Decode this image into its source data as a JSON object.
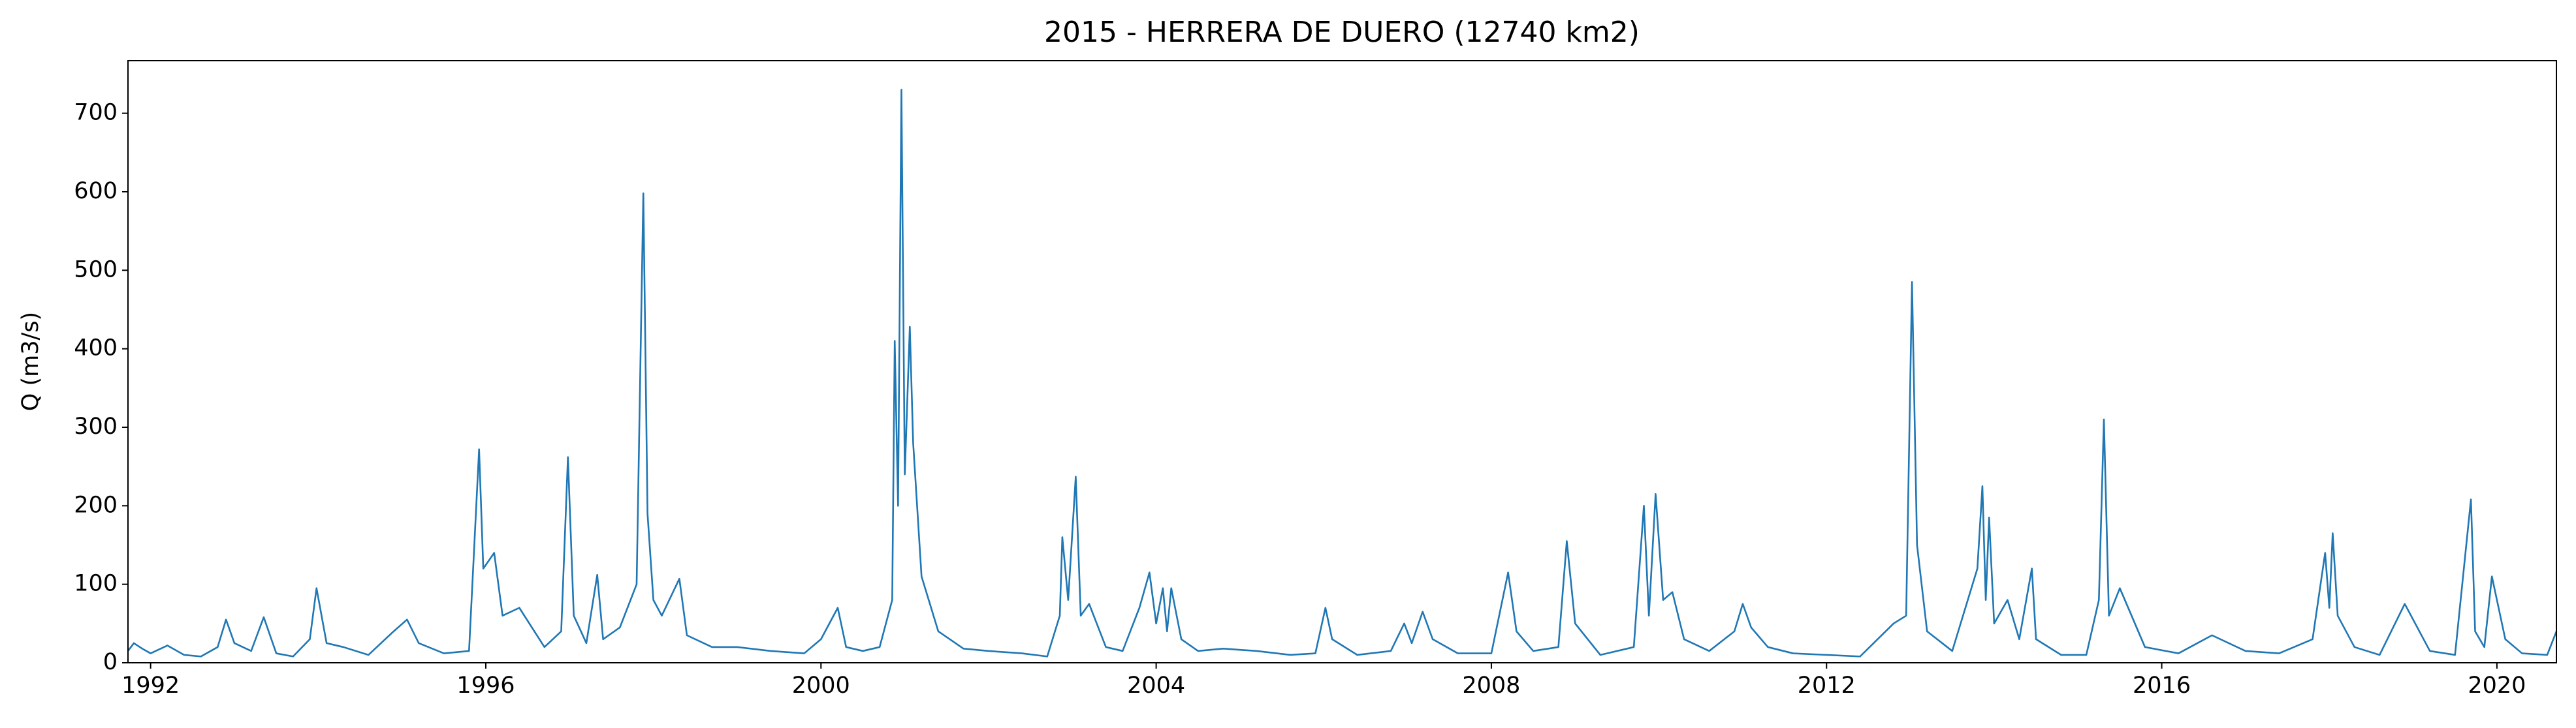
{
  "chart_data": {
    "type": "line",
    "title": "2015 - HERRERA DE DUERO (12740 km2)",
    "y_label": "Q (m3/s)",
    "color": "#1f77b4",
    "x": [
      1991.73,
      1991.8,
      1991.9,
      1992.0,
      1992.2,
      1992.4,
      1992.6,
      1992.8,
      1992.9,
      1993.0,
      1993.2,
      1993.35,
      1993.5,
      1993.7,
      1993.9,
      1993.98,
      1994.1,
      1994.3,
      1994.6,
      1994.9,
      1995.06,
      1995.2,
      1995.5,
      1995.8,
      1995.92,
      1995.97,
      1996.1,
      1996.2,
      1996.4,
      1996.7,
      1996.9,
      1996.98,
      1997.05,
      1997.2,
      1997.33,
      1997.4,
      1997.6,
      1997.8,
      1997.88,
      1997.93,
      1998.0,
      1998.1,
      1998.31,
      1998.4,
      1998.7,
      1999.0,
      1999.4,
      1999.8,
      2000.0,
      2000.2,
      2000.3,
      2000.5,
      2000.7,
      2000.85,
      2000.88,
      2000.92,
      2000.96,
      2001.0,
      2001.06,
      2001.1,
      2001.2,
      2001.4,
      2001.7,
      2002.0,
      2002.4,
      2002.7,
      2002.85,
      2002.88,
      2002.95,
      2003.04,
      2003.1,
      2003.2,
      2003.4,
      2003.6,
      2003.8,
      2003.92,
      2004.0,
      2004.08,
      2004.13,
      2004.18,
      2004.3,
      2004.5,
      2004.8,
      2005.2,
      2005.6,
      2005.9,
      2006.02,
      2006.1,
      2006.4,
      2006.8,
      2006.96,
      2007.05,
      2007.18,
      2007.3,
      2007.6,
      2008.0,
      2008.2,
      2008.3,
      2008.5,
      2008.8,
      2008.9,
      2009.0,
      2009.3,
      2009.7,
      2009.82,
      2009.88,
      2009.96,
      2010.05,
      2010.16,
      2010.3,
      2010.6,
      2010.9,
      2011.0,
      2011.1,
      2011.3,
      2011.6,
      2012.0,
      2012.4,
      2012.8,
      2012.95,
      2013.02,
      2013.08,
      2013.2,
      2013.5,
      2013.8,
      2013.86,
      2013.9,
      2013.94,
      2014.0,
      2014.16,
      2014.3,
      2014.45,
      2014.5,
      2014.8,
      2015.1,
      2015.25,
      2015.31,
      2015.37,
      2015.5,
      2015.8,
      2016.2,
      2016.6,
      2017.0,
      2017.4,
      2017.8,
      2017.95,
      2018.0,
      2018.04,
      2018.1,
      2018.3,
      2018.6,
      2018.9,
      2019.2,
      2019.5,
      2019.69,
      2019.74,
      2019.85,
      2019.94,
      2020.0,
      2020.1,
      2020.3,
      2020.6,
      2020.71
    ],
    "values": [
      15,
      25,
      18,
      12,
      22,
      10,
      8,
      20,
      55,
      25,
      15,
      58,
      12,
      8,
      30,
      95,
      25,
      20,
      10,
      40,
      55,
      25,
      12,
      15,
      272,
      120,
      140,
      60,
      70,
      20,
      40,
      262,
      60,
      25,
      112,
      30,
      45,
      100,
      598,
      190,
      80,
      60,
      107,
      35,
      20,
      20,
      15,
      12,
      30,
      70,
      20,
      15,
      20,
      80,
      410,
      200,
      730,
      240,
      428,
      280,
      110,
      40,
      18,
      15,
      12,
      8,
      60,
      160,
      80,
      237,
      60,
      75,
      20,
      15,
      70,
      115,
      50,
      95,
      40,
      95,
      30,
      15,
      18,
      15,
      10,
      12,
      70,
      30,
      10,
      15,
      50,
      25,
      65,
      30,
      12,
      12,
      115,
      40,
      15,
      20,
      155,
      50,
      10,
      20,
      200,
      60,
      215,
      80,
      90,
      30,
      15,
      40,
      75,
      45,
      20,
      12,
      10,
      8,
      50,
      60,
      485,
      150,
      40,
      15,
      120,
      225,
      80,
      185,
      50,
      80,
      30,
      120,
      30,
      10,
      10,
      80,
      310,
      60,
      95,
      20,
      12,
      35,
      15,
      12,
      30,
      140,
      70,
      165,
      60,
      20,
      10,
      75,
      15,
      10,
      208,
      40,
      20,
      110,
      80,
      30,
      12,
      10,
      40
    ],
    "xlim": [
      1991.73,
      2020.71
    ],
    "ylim": [
      0,
      767
    ],
    "xticks": [
      1992,
      1996,
      2000,
      2004,
      2008,
      2012,
      2016,
      2020
    ],
    "yticks": [
      0,
      100,
      200,
      300,
      400,
      500,
      600,
      700
    ]
  }
}
